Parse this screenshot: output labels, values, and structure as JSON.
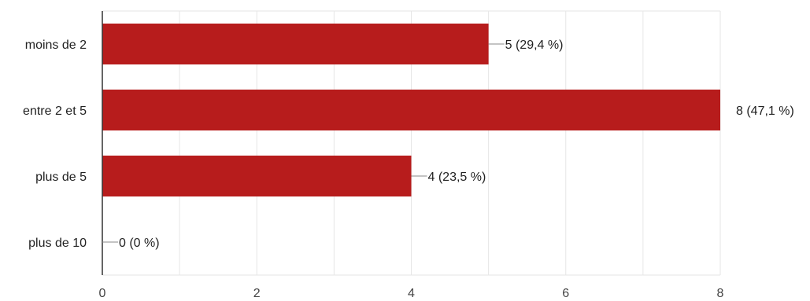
{
  "chart_data": {
    "type": "bar",
    "orientation": "horizontal",
    "title": "",
    "xlabel": "",
    "ylabel": "",
    "categories": [
      "moins de 2",
      "entre 2 et 5",
      "plus de 5",
      "plus de 10"
    ],
    "values": [
      5,
      8,
      4,
      0
    ],
    "data_labels": [
      "5 (29,4 %)",
      "8 (47,1 %)",
      "4 (23,5 %)",
      "0 (0 %)"
    ],
    "xlim": [
      0,
      8
    ],
    "x_ticks": [
      0,
      2,
      4,
      6,
      8
    ],
    "x_tick_labels": [
      "0",
      "2",
      "4",
      "6",
      "8"
    ],
    "grid": true,
    "bar_color": "#b71c1c",
    "axis_color": "#333333",
    "grid_color": "#e6e6e6"
  }
}
